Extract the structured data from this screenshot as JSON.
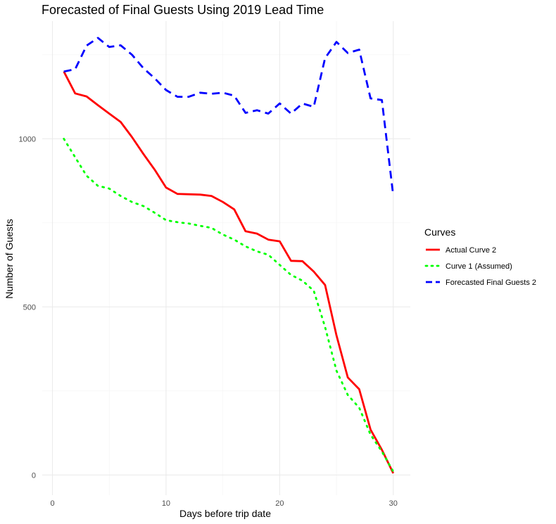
{
  "chart_data": {
    "type": "line",
    "title": "Forecasted of Final Guests Using 2019 Lead Time",
    "xlabel": "Days before trip date",
    "ylabel": "Number of Guests",
    "xlim": [
      -0.9,
      31.5
    ],
    "ylim": [
      -60,
      1350
    ],
    "x_ticks": [
      0,
      10,
      20,
      30
    ],
    "y_ticks": [
      0,
      500,
      1000
    ],
    "grid": true,
    "legend": {
      "title": "Curves",
      "position": "right"
    },
    "x": [
      1,
      2,
      3,
      4,
      5,
      6,
      7,
      8,
      9,
      10,
      11,
      12,
      13,
      14,
      15,
      16,
      17,
      18,
      19,
      20,
      21,
      22,
      23,
      24,
      25,
      26,
      27,
      28,
      29,
      30
    ],
    "series": [
      {
        "name": "Actual Curve 2",
        "color": "#ff0000",
        "dash": "solid",
        "values": [
          1200,
          1135,
          1126,
          1100,
          1075,
          1050,
          1005,
          955,
          908,
          855,
          836,
          835,
          834,
          830,
          812,
          790,
          725,
          718,
          700,
          695,
          637,
          636,
          605,
          565,
          415,
          290,
          255,
          135,
          75,
          5
        ]
      },
      {
        "name": "Curve 1 (Assumed)",
        "color": "#00ff00",
        "dash": "dotted",
        "values": [
          1000,
          945,
          890,
          860,
          852,
          830,
          812,
          800,
          780,
          758,
          752,
          748,
          741,
          735,
          715,
          700,
          680,
          665,
          655,
          625,
          595,
          578,
          548,
          440,
          310,
          238,
          200,
          120,
          70,
          10
        ]
      },
      {
        "name": "Forecasted Final Guests 2",
        "color": "#0000ff",
        "dash": "dashed",
        "values": [
          1200,
          1207,
          1277,
          1300,
          1273,
          1278,
          1250,
          1210,
          1180,
          1145,
          1125,
          1125,
          1137,
          1134,
          1137,
          1128,
          1077,
          1085,
          1075,
          1105,
          1075,
          1105,
          1095,
          1240,
          1288,
          1255,
          1265,
          1120,
          1115,
          830
        ]
      }
    ]
  }
}
